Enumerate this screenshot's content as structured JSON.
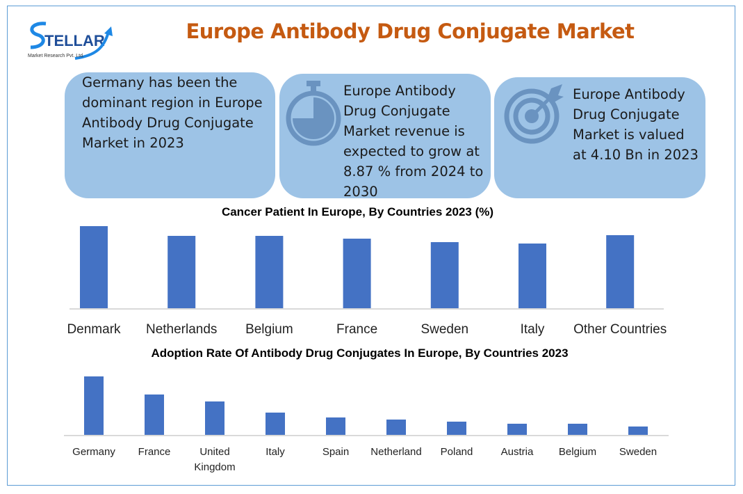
{
  "header": {
    "title": "Europe Antibody Drug Conjugate Market",
    "logo_text": "STELLAR",
    "logo_subtext": "Market Research Pvt. Ltd."
  },
  "cards": [
    {
      "text": "Germany has been the dominant region in Europe Antibody Drug Conjugate Market in 2023",
      "icon": "none"
    },
    {
      "text": "Europe Antibody Drug Conjugate Market revenue is expected to grow at 8.87 % from 2024 to 2030",
      "icon": "stopwatch-icon"
    },
    {
      "text": "Europe Antibody Drug Conjugate Market is valued at 4.10 Bn in 2023",
      "icon": "target-icon"
    }
  ],
  "colors": {
    "title": "#c55a11",
    "card": "#9dc3e6",
    "bar": "#4472c4",
    "icon": "#6a93c0",
    "frame": "#5b9bd5"
  },
  "chart_data": [
    {
      "type": "bar",
      "title": "Cancer Patient In Europe, By Countries 2023 (%)",
      "categories": [
        "Denmark",
        "Netherlands",
        "Belgium",
        "France",
        "Sweden",
        "Italy",
        "Other Countries"
      ],
      "values": [
        118,
        104,
        104,
        100,
        95,
        93,
        105
      ],
      "ylim": [
        0,
        120
      ],
      "grid": false,
      "legend": "none"
    },
    {
      "type": "bar",
      "title": "Adoption Rate Of Antibody Drug Conjugates In Europe, By Countries 2023",
      "categories": [
        "Germany",
        "France",
        "United Kingdom",
        "Italy",
        "Spain",
        "Netherland",
        "Poland",
        "Austria",
        "Belgium",
        "Sweden"
      ],
      "values": [
        84,
        58,
        48,
        32,
        25,
        22,
        19,
        16,
        16,
        12
      ],
      "ylim": [
        0,
        90
      ],
      "grid": false,
      "legend": "none"
    }
  ]
}
